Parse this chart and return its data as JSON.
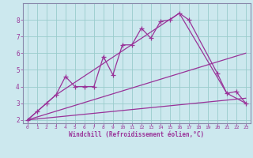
{
  "xlabel": "Windchill (Refroidissement éolien,°C)",
  "bg_color": "#cce8ee",
  "line_color": "#993399",
  "grid_color": "#99cccc",
  "xlim": [
    -0.5,
    23.5
  ],
  "ylim": [
    1.8,
    9.0
  ],
  "yticks": [
    2,
    3,
    4,
    5,
    6,
    7,
    8
  ],
  "xticks": [
    0,
    1,
    2,
    3,
    4,
    5,
    6,
    7,
    8,
    9,
    10,
    11,
    12,
    13,
    14,
    15,
    16,
    17,
    18,
    19,
    20,
    21,
    22,
    23
  ],
  "line1_x": [
    0,
    1,
    2,
    3,
    4,
    5,
    6,
    7,
    8,
    9,
    10,
    11,
    12,
    13,
    14,
    15,
    16,
    17,
    20,
    21,
    22,
    23
  ],
  "line1_y": [
    2.0,
    2.5,
    3.0,
    3.5,
    4.6,
    4.0,
    4.0,
    4.0,
    5.8,
    4.7,
    6.5,
    6.5,
    7.5,
    6.9,
    7.9,
    8.0,
    8.4,
    8.0,
    4.8,
    3.6,
    3.7,
    3.0
  ],
  "line2_x": [
    0,
    3,
    16,
    21,
    23
  ],
  "line2_y": [
    2.0,
    3.5,
    8.4,
    3.6,
    3.0
  ],
  "line3_x": [
    0,
    23
  ],
  "line3_y": [
    2.0,
    6.0
  ],
  "line4_x": [
    0,
    23
  ],
  "line4_y": [
    2.0,
    3.3
  ],
  "marker": "+",
  "markersize": 4,
  "linewidth": 0.9
}
